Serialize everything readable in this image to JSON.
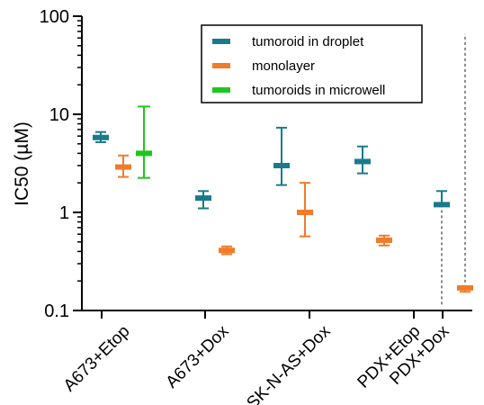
{
  "chart_data": {
    "type": "errorbar",
    "ylabel": "IC50 (µM)",
    "yscale": "log",
    "ylim": [
      0.1,
      100
    ],
    "ytick_labels": [
      "100",
      "10",
      "1",
      "0.1"
    ],
    "ytick_values": [
      100,
      10,
      1,
      0.1
    ],
    "categories": [
      "A673+Etop",
      "A673+Dox",
      "SK-N-AS+Dox",
      "PDX+Etop",
      "PDX+Dox"
    ],
    "legend_position": "top-right",
    "series": [
      {
        "name": "tumoroid in droplet",
        "color": "#1a7a8c",
        "points": [
          {
            "category": "A673+Etop",
            "value": 5.8,
            "low": 5.2,
            "high": 6.6
          },
          {
            "category": "A673+Dox",
            "value": 1.4,
            "low": 1.1,
            "high": 1.65
          },
          {
            "category": "SK-N-AS+Dox",
            "value": 3.0,
            "low": 1.9,
            "high": 7.3
          },
          {
            "category": "PDX+Etop",
            "value": 3.3,
            "low": 2.5,
            "high": 4.7
          },
          {
            "category": "PDX+Dox",
            "value": 1.2,
            "low": 0.11,
            "high": 1.65,
            "dashed_lower": true
          }
        ]
      },
      {
        "name": "monolayer",
        "color": "#f07b2a",
        "points": [
          {
            "category": "A673+Etop",
            "value": 2.9,
            "low": 2.3,
            "high": 3.8
          },
          {
            "category": "A673+Dox",
            "value": 0.41,
            "low": 0.375,
            "high": 0.45
          },
          {
            "category": "SK-N-AS+Dox",
            "value": 1.0,
            "low": 0.57,
            "high": 2.0
          },
          {
            "category": "PDX+Etop",
            "value": 0.52,
            "low": 0.46,
            "high": 0.58
          },
          {
            "category": "PDX+Dox",
            "value": 0.17,
            "low": 0.155,
            "high": 66,
            "dashed_upper": true
          }
        ]
      },
      {
        "name": "tumoroids in microwell",
        "color": "#1ec71e",
        "points": [
          {
            "category": "A673+Etop",
            "value": 4.0,
            "low": 2.25,
            "high": 12
          }
        ]
      }
    ]
  }
}
